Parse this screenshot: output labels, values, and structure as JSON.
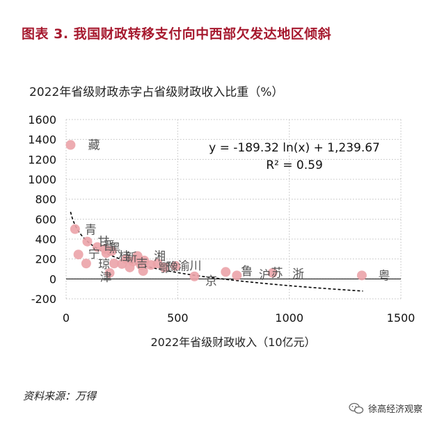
{
  "figure_title": "图表 3. 我国财政转移支付向中西部欠发达地区倾斜",
  "source_text": "资料来源：万得",
  "watermark_text": "徐高经济观察",
  "chart_data": {
    "type": "scatter",
    "title": "2022年省级财政赤字占省级财政收入比重（%）",
    "xlabel": "2022年省级财政收入（10亿元）",
    "ylabel": "",
    "xlim": [
      0,
      1500
    ],
    "ylim": [
      -200,
      1600
    ],
    "x_ticks": [
      0,
      500,
      1000,
      1500
    ],
    "y_ticks": [
      -200,
      0,
      200,
      400,
      600,
      800,
      1000,
      1200,
      1400,
      1600
    ],
    "grid": "dotted",
    "point_color": "#eba3a8",
    "trend_color": "#000000",
    "equation": "y = -189.32 ln(x) + 1,239.67",
    "r_squared": "R² = 0.59",
    "trendline": {
      "type": "logarithmic",
      "a": -189.32,
      "b": 1239.67,
      "x_range": [
        20,
        1330
      ]
    },
    "points": [
      {
        "x": 20,
        "y": 1345,
        "label": "藏"
      },
      {
        "x": 40,
        "y": 500,
        "label": ""
      },
      {
        "x": 55,
        "y": 245,
        "label": ""
      },
      {
        "x": 90,
        "y": 155,
        "label": ""
      },
      {
        "x": 95,
        "y": 375,
        "label": "青"
      },
      {
        "x": 140,
        "y": 320,
        "label": ""
      },
      {
        "x": 175,
        "y": 300,
        "label": "甘"
      },
      {
        "x": 180,
        "y": 260,
        "label": "宁"
      },
      {
        "x": 195,
        "y": 60,
        "label": ""
      },
      {
        "x": 205,
        "y": 280,
        "label": "黑"
      },
      {
        "x": 215,
        "y": 155,
        "label": "琼"
      },
      {
        "x": 250,
        "y": 150,
        "label": ""
      },
      {
        "x": 270,
        "y": 200,
        "label": "桂"
      },
      {
        "x": 285,
        "y": 115,
        "label": ""
      },
      {
        "x": 300,
        "y": 175,
        "label": ""
      },
      {
        "x": 320,
        "y": 230,
        "label": ""
      },
      {
        "x": 335,
        "y": 140,
        "label": ""
      },
      {
        "x": 345,
        "y": 80,
        "label": ""
      },
      {
        "x": 350,
        "y": 185,
        "label": ""
      },
      {
        "x": 380,
        "y": 140,
        "label": ""
      },
      {
        "x": 410,
        "y": 155,
        "label": ""
      },
      {
        "x": 440,
        "y": 115,
        "label": ""
      },
      {
        "x": 490,
        "y": 130,
        "label": "渝"
      },
      {
        "x": 575,
        "y": 25,
        "label": ""
      },
      {
        "x": 715,
        "y": 70,
        "label": ""
      },
      {
        "x": 765,
        "y": 35,
        "label": ""
      },
      {
        "x": 925,
        "y": 60,
        "label": ""
      },
      {
        "x": 1325,
        "y": 35,
        "label": "粤"
      }
    ],
    "labels": [
      {
        "x": 125,
        "y": 1345,
        "text": "藏"
      },
      {
        "x": 110,
        "y": 495,
        "text": "青"
      },
      {
        "x": 168,
        "y": 375,
        "text": "甘"
      },
      {
        "x": 192,
        "y": 335,
        "text": "晋"
      },
      {
        "x": 125,
        "y": 255,
        "text": "宁"
      },
      {
        "x": 218,
        "y": 310,
        "text": "黑"
      },
      {
        "x": 170,
        "y": 150,
        "text": "琼"
      },
      {
        "x": 262,
        "y": 230,
        "text": "桂"
      },
      {
        "x": 292,
        "y": 220,
        "text": "新"
      },
      {
        "x": 178,
        "y": 20,
        "text": "津"
      },
      {
        "x": 340,
        "y": 160,
        "text": "吉"
      },
      {
        "x": 420,
        "y": 230,
        "text": "湘"
      },
      {
        "x": 440,
        "y": 110,
        "text": "鄂"
      },
      {
        "x": 475,
        "y": 120,
        "text": "豫"
      },
      {
        "x": 527,
        "y": 130,
        "text": "渝"
      },
      {
        "x": 580,
        "y": 135,
        "text": "川"
      },
      {
        "x": 650,
        "y": -20,
        "text": "京"
      },
      {
        "x": 810,
        "y": 80,
        "text": "鲁"
      },
      {
        "x": 890,
        "y": 40,
        "text": "沪"
      },
      {
        "x": 945,
        "y": 60,
        "text": "苏"
      },
      {
        "x": 1040,
        "y": 50,
        "text": "浙"
      },
      {
        "x": 1425,
        "y": 35,
        "text": "粤"
      }
    ]
  }
}
